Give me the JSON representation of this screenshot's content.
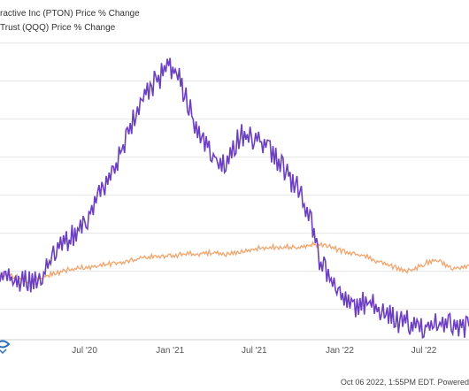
{
  "legend": {
    "items": [
      {
        "label": "ractive Inc (PTON) Price % Change",
        "color": "#6b3fc0"
      },
      {
        "label": "Trust (QQQ) Price % Change",
        "color": "#f2a46b"
      }
    ]
  },
  "footer": {
    "timestamp": "Oct 06 2022, 1:55PM EDT.",
    "powered": "Powered"
  },
  "chart_data": {
    "type": "line",
    "x_ticks": [
      "Jul '20",
      "Jan '21",
      "Jul '21",
      "Jan '22",
      "Jul '22"
    ],
    "grid": "horizontal",
    "series": [
      {
        "name": "ractive Inc (PTON) Price % Change",
        "color": "#6b3fc0",
        "x": [
          "2020-01-01",
          "2020-02-01",
          "2020-03-01",
          "2020-04-01",
          "2020-05-01",
          "2020-06-01",
          "2020-07-01",
          "2020-08-01",
          "2020-09-01",
          "2020-10-01",
          "2020-11-01",
          "2020-12-01",
          "2021-01-01",
          "2021-01-15",
          "2021-02-01",
          "2021-03-01",
          "2021-04-01",
          "2021-05-01",
          "2021-06-01",
          "2021-07-01",
          "2021-08-01",
          "2021-09-01",
          "2021-10-01",
          "2021-11-01",
          "2021-11-15",
          "2021-12-01",
          "2022-01-01",
          "2022-02-01",
          "2022-03-01",
          "2022-04-01",
          "2022-05-01",
          "2022-06-01",
          "2022-07-01",
          "2022-08-01",
          "2022-09-01",
          "2022-10-06"
        ],
        "y": [
          -10,
          -20,
          -30,
          -10,
          60,
          90,
          120,
          200,
          260,
          360,
          450,
          500,
          540,
          520,
          470,
          360,
          310,
          270,
          360,
          350,
          330,
          270,
          220,
          130,
          40,
          0,
          -50,
          -90,
          -80,
          -100,
          -130,
          -135,
          -145,
          -140,
          -140,
          -145
        ]
      },
      {
        "name": "Trust (QQQ) Price % Change",
        "color": "#f2a46b",
        "x": [
          "2020-01-01",
          "2020-02-01",
          "2020-03-01",
          "2020-04-01",
          "2020-05-01",
          "2020-06-01",
          "2020-07-01",
          "2020-08-01",
          "2020-09-01",
          "2020-10-01",
          "2020-11-01",
          "2020-12-01",
          "2021-01-01",
          "2021-02-01",
          "2021-03-01",
          "2021-04-01",
          "2021-05-01",
          "2021-06-01",
          "2021-07-01",
          "2021-08-01",
          "2021-09-01",
          "2021-10-01",
          "2021-11-01",
          "2021-12-01",
          "2022-01-01",
          "2022-02-01",
          "2022-03-01",
          "2022-04-01",
          "2022-05-01",
          "2022-06-01",
          "2022-07-01",
          "2022-08-01",
          "2022-09-01",
          "2022-10-06"
        ],
        "y": [
          -10,
          -12,
          -30,
          -15,
          -5,
          5,
          10,
          15,
          20,
          25,
          35,
          40,
          40,
          45,
          45,
          50,
          45,
          50,
          60,
          62,
          65,
          62,
          70,
          68,
          55,
          45,
          40,
          20,
          10,
          0,
          20,
          30,
          5,
          15
        ]
      }
    ]
  }
}
